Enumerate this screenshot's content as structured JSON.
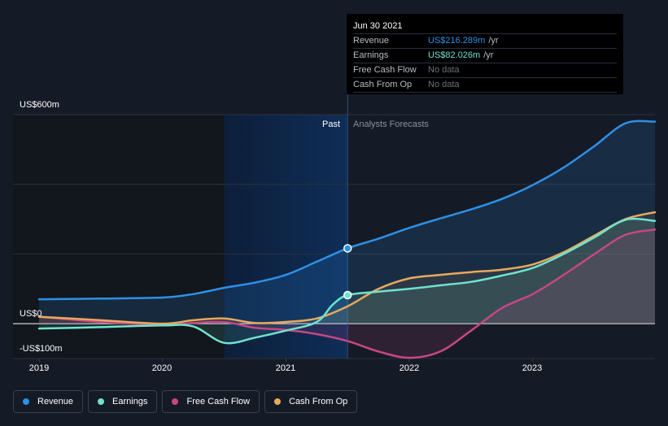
{
  "colors": {
    "revenue": "#2e8fe6",
    "earnings": "#6fe3cf",
    "free_cash_flow": "#c94685",
    "cash_from_op": "#e8a85c"
  },
  "tooltip": {
    "date": "Jun 30 2021",
    "rows": [
      {
        "label": "Revenue",
        "value": "US$216.289m",
        "unit": "/yr",
        "color": "#2e8fe6"
      },
      {
        "label": "Earnings",
        "value": "US$82.026m",
        "unit": "/yr",
        "color": "#6fe3cf"
      },
      {
        "label": "Free Cash Flow",
        "value": "No data",
        "unit": ""
      },
      {
        "label": "Cash From Op",
        "value": "No data",
        "unit": ""
      }
    ]
  },
  "labels": {
    "past": "Past",
    "forecast": "Analysts Forecasts"
  },
  "chart_data": {
    "type": "line",
    "title": "",
    "xlabel": "",
    "ylabel": "",
    "ylim": [
      -100,
      600
    ],
    "xlim": [
      2019,
      2023.99
    ],
    "divider_x": 2021.5,
    "y_tick_labels": [
      {
        "value": 600,
        "label": "US$600m"
      },
      {
        "value": 0,
        "label": "US$0"
      },
      {
        "value": -100,
        "label": "-US$100m"
      }
    ],
    "gridlines": [
      600,
      400,
      200,
      0,
      -100
    ],
    "x_ticks": [
      {
        "value": 2019,
        "label": "2019"
      },
      {
        "value": 2020,
        "label": "2020"
      },
      {
        "value": 2021,
        "label": "2021"
      },
      {
        "value": 2022,
        "label": "2022"
      },
      {
        "value": 2023,
        "label": "2023"
      }
    ],
    "series": [
      {
        "name": "Revenue",
        "key": "revenue",
        "points": [
          [
            2019.0,
            70
          ],
          [
            2019.5,
            72
          ],
          [
            2020.0,
            75
          ],
          [
            2020.25,
            85
          ],
          [
            2020.5,
            103
          ],
          [
            2020.75,
            118
          ],
          [
            2021.0,
            140
          ],
          [
            2021.25,
            178
          ],
          [
            2021.5,
            216.3
          ],
          [
            2021.75,
            244
          ],
          [
            2022.0,
            275
          ],
          [
            2022.25,
            302
          ],
          [
            2022.5,
            328
          ],
          [
            2022.75,
            358
          ],
          [
            2023.0,
            398
          ],
          [
            2023.25,
            448
          ],
          [
            2023.5,
            510
          ],
          [
            2023.75,
            575
          ],
          [
            2023.99,
            580
          ]
        ]
      },
      {
        "name": "Earnings",
        "key": "earnings",
        "points": [
          [
            2019.0,
            -14
          ],
          [
            2019.5,
            -10
          ],
          [
            2020.0,
            -5
          ],
          [
            2020.25,
            -8
          ],
          [
            2020.5,
            -55
          ],
          [
            2020.75,
            -40
          ],
          [
            2021.0,
            -20
          ],
          [
            2021.25,
            5
          ],
          [
            2021.38,
            55
          ],
          [
            2021.5,
            82
          ],
          [
            2021.75,
            92
          ],
          [
            2022.0,
            100
          ],
          [
            2022.25,
            110
          ],
          [
            2022.5,
            120
          ],
          [
            2022.75,
            138
          ],
          [
            2023.0,
            160
          ],
          [
            2023.25,
            200
          ],
          [
            2023.5,
            248
          ],
          [
            2023.75,
            298
          ],
          [
            2023.99,
            295
          ]
        ]
      },
      {
        "name": "Free Cash Flow",
        "key": "free_cash_flow",
        "points": [
          [
            2019.0,
            20
          ],
          [
            2019.5,
            5
          ],
          [
            2020.0,
            -3
          ],
          [
            2020.25,
            2
          ],
          [
            2020.5,
            5
          ],
          [
            2020.75,
            -12
          ],
          [
            2021.0,
            -18
          ],
          [
            2021.25,
            -30
          ],
          [
            2021.5,
            -50
          ],
          [
            2021.75,
            -80
          ],
          [
            2022.0,
            -98
          ],
          [
            2022.25,
            -80
          ],
          [
            2022.5,
            -20
          ],
          [
            2022.75,
            45
          ],
          [
            2023.0,
            85
          ],
          [
            2023.25,
            140
          ],
          [
            2023.5,
            200
          ],
          [
            2023.75,
            255
          ],
          [
            2023.99,
            270
          ]
        ]
      },
      {
        "name": "Cash From Op",
        "key": "cash_from_op",
        "points": [
          [
            2019.0,
            20
          ],
          [
            2019.5,
            10
          ],
          [
            2020.0,
            0
          ],
          [
            2020.25,
            10
          ],
          [
            2020.5,
            15
          ],
          [
            2020.75,
            2
          ],
          [
            2021.0,
            5
          ],
          [
            2021.25,
            15
          ],
          [
            2021.5,
            50
          ],
          [
            2021.75,
            100
          ],
          [
            2022.0,
            130
          ],
          [
            2022.25,
            140
          ],
          [
            2022.5,
            148
          ],
          [
            2022.75,
            155
          ],
          [
            2023.0,
            170
          ],
          [
            2023.25,
            205
          ],
          [
            2023.5,
            253
          ],
          [
            2023.75,
            300
          ],
          [
            2023.99,
            320
          ]
        ]
      }
    ]
  },
  "legend": [
    {
      "label": "Revenue",
      "color": "#2e8fe6"
    },
    {
      "label": "Earnings",
      "color": "#6fe3cf"
    },
    {
      "label": "Free Cash Flow",
      "color": "#c94685"
    },
    {
      "label": "Cash From Op",
      "color": "#e8a85c"
    }
  ]
}
